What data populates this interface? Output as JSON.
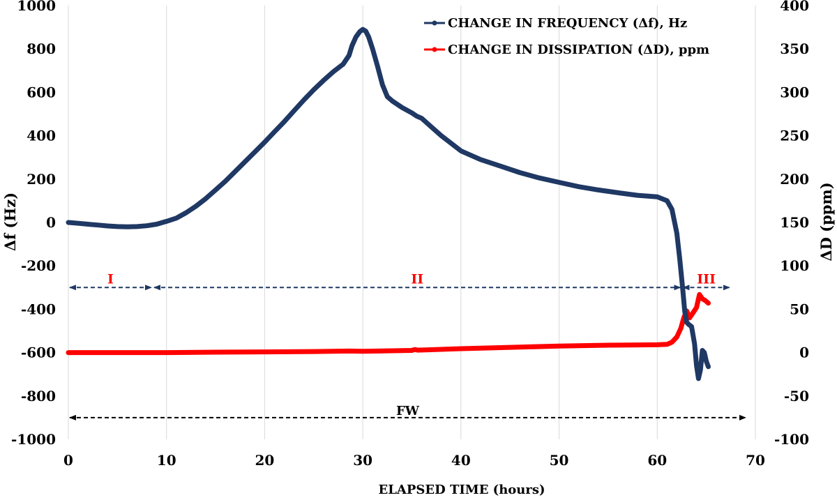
{
  "chart_data": {
    "type": "line",
    "xlabel": "ELAPSED TIME  (hours)",
    "ylabel": "Δf (Hz)",
    "y2label": "ΔD (ppm)",
    "xlim": [
      0,
      70
    ],
    "ylim": [
      -1000,
      1000
    ],
    "y2lim": [
      -100,
      400
    ],
    "x_ticks": [
      "0",
      "10",
      "20",
      "30",
      "40",
      "50",
      "60",
      "70"
    ],
    "y_ticks": [
      "-1000",
      "-800",
      "-600",
      "-400",
      "-200",
      "0",
      "200",
      "400",
      "600",
      "800",
      "1000"
    ],
    "y2_ticks": [
      "-100",
      "-50",
      "0",
      "50",
      "100",
      "150",
      "200",
      "250",
      "300",
      "350",
      "400"
    ],
    "grid": "vertical",
    "legend_position": "top-right",
    "colors": {
      "frequency": "#1f3864",
      "dissipation": "#ff0000",
      "region_text": "#ff0000",
      "region_arrow": "#1f3864",
      "fw_arrow": "#000000"
    },
    "series": [
      {
        "name": "CHANGE IN FREQUENCY (Δf), Hz",
        "axis": "left",
        "x": [
          0,
          1,
          2,
          3,
          4,
          5,
          6,
          7,
          8,
          9,
          10,
          11,
          12,
          13,
          14,
          15,
          16,
          17,
          18,
          19,
          20,
          21,
          22,
          23,
          24,
          25,
          26,
          27,
          28,
          28.6,
          28.9,
          29.3,
          29.7,
          30,
          30.3,
          30.6,
          31,
          31.5,
          32,
          32.5,
          33,
          34,
          35,
          35.5,
          36,
          37,
          38,
          39,
          40,
          42,
          44,
          46,
          48,
          50,
          52,
          54,
          56,
          58,
          60,
          61,
          61.5,
          62,
          62.3,
          62.6,
          62.8,
          63,
          63.2,
          63.5,
          63.8,
          64,
          64.2,
          64.4,
          64.6,
          64.8,
          65,
          65.2
        ],
        "y": [
          0,
          -4,
          -8,
          -12,
          -16,
          -19,
          -20,
          -19,
          -15,
          -8,
          5,
          20,
          45,
          75,
          110,
          150,
          190,
          235,
          280,
          325,
          370,
          418,
          465,
          515,
          565,
          612,
          655,
          695,
          730,
          770,
          815,
          855,
          880,
          890,
          882,
          855,
          800,
          720,
          635,
          580,
          560,
          530,
          505,
          490,
          480,
          440,
          400,
          365,
          330,
          290,
          260,
          230,
          205,
          185,
          165,
          150,
          137,
          125,
          118,
          100,
          60,
          -50,
          -170,
          -310,
          -410,
          -460,
          -470,
          -480,
          -560,
          -660,
          -720,
          -680,
          -590,
          -600,
          -640,
          -665
        ]
      },
      {
        "name": "CHANGE IN DISSIPATION (ΔD), ppm",
        "axis": "right",
        "x": [
          0,
          5,
          10,
          15,
          20,
          25,
          28.6,
          30,
          35,
          35.3,
          35.6,
          40,
          45,
          50,
          55,
          60,
          61,
          61.5,
          62,
          62.4,
          62.7,
          63,
          63.3,
          63.6,
          64,
          64.3,
          64.6,
          64.9,
          65.2
        ],
        "y": [
          0,
          0,
          0,
          0.5,
          0.8,
          1.2,
          1.8,
          1.5,
          2.5,
          3.5,
          2.8,
          4.5,
          6,
          7.5,
          8.5,
          9,
          9.5,
          12,
          18,
          28,
          40,
          48,
          40,
          45,
          52,
          67,
          62,
          60,
          57
        ]
      }
    ],
    "regions": [
      {
        "label": "I",
        "x": [
          0,
          8.6
        ],
        "y": -300
      },
      {
        "label": "II",
        "x": [
          8.6,
          62.5
        ],
        "y": -300
      },
      {
        "label": "III",
        "x": [
          62.5,
          67.5
        ],
        "y": -300
      }
    ],
    "span": {
      "label": "FW",
      "x": [
        0,
        69
      ],
      "y": -900
    }
  }
}
